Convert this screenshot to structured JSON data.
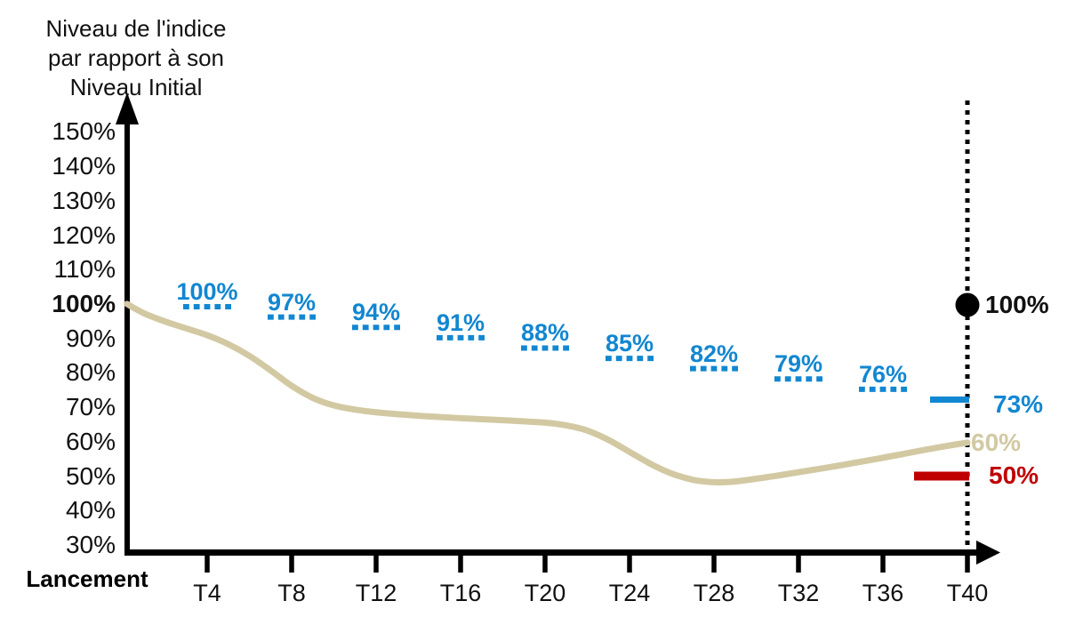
{
  "title": {
    "lines": [
      "Niveau de l'indice",
      "par rapport à son",
      "Niveau Initial"
    ]
  },
  "colors": {
    "blue": "#1287d1",
    "red": "#c00000",
    "tan": "#d2c9a3",
    "axis_black": "#000000",
    "text_black": "#111111"
  },
  "chart_data": {
    "type": "line",
    "title": "Niveau de l'indice par rapport à son Niveau Initial",
    "grid": false,
    "x_axis": {
      "origin_label": "Lancement",
      "tick_labels": [
        "T4",
        "T8",
        "T12",
        "T16",
        "T20",
        "T24",
        "T28",
        "T32",
        "T36",
        "T40"
      ],
      "tick_quarters": [
        4,
        8,
        12,
        16,
        20,
        24,
        28,
        32,
        36,
        40
      ]
    },
    "y_axis": {
      "tick_labels": [
        "150%",
        "140%",
        "130%",
        "120%",
        "110%",
        "100%",
        "90%",
        "80%",
        "70%",
        "60%",
        "50%",
        "40%",
        "30%"
      ],
      "tick_values": [
        150,
        140,
        130,
        120,
        110,
        100,
        90,
        80,
        70,
        60,
        50,
        40,
        30
      ],
      "bold_tick_label": "100%",
      "range": [
        30,
        150
      ]
    },
    "series": [
      {
        "name": "niveau-indice",
        "color": "#d2c9a3",
        "end_label": "60%",
        "end_value": 60,
        "points": [
          [
            0.2,
            100.3
          ],
          [
            1,
            97.6
          ],
          [
            2,
            95.2
          ],
          [
            3,
            93.2
          ],
          [
            4,
            91.2
          ],
          [
            5,
            88.6
          ],
          [
            6,
            85.2
          ],
          [
            7,
            81.0
          ],
          [
            8,
            76.5
          ],
          [
            9,
            73.0
          ],
          [
            10,
            70.8
          ],
          [
            11,
            69.6
          ],
          [
            12,
            68.8
          ],
          [
            14,
            67.8
          ],
          [
            16,
            67.1
          ],
          [
            18,
            66.5
          ],
          [
            20,
            65.8
          ],
          [
            21,
            65.0
          ],
          [
            22,
            63.5
          ],
          [
            23,
            60.8
          ],
          [
            24,
            57.3
          ],
          [
            25,
            53.8
          ],
          [
            26,
            51.0
          ],
          [
            27,
            49.2
          ],
          [
            28,
            48.5
          ],
          [
            29,
            48.7
          ],
          [
            30,
            49.5
          ],
          [
            31,
            50.4
          ],
          [
            32,
            51.4
          ],
          [
            34,
            53.4
          ],
          [
            36,
            55.6
          ],
          [
            38,
            57.9
          ],
          [
            39,
            59.0
          ],
          [
            40,
            60.0
          ]
        ]
      }
    ],
    "protection_markers": {
      "color": "#1287d1",
      "style": "dashed",
      "items": [
        {
          "label": "100%",
          "quarter": 4,
          "value": 100
        },
        {
          "label": "97%",
          "quarter": 8,
          "value": 97
        },
        {
          "label": "94%",
          "quarter": 12,
          "value": 94
        },
        {
          "label": "91%",
          "quarter": 16,
          "value": 91
        },
        {
          "label": "88%",
          "quarter": 20,
          "value": 88
        },
        {
          "label": "85%",
          "quarter": 24,
          "value": 85
        },
        {
          "label": "82%",
          "quarter": 28,
          "value": 82
        },
        {
          "label": "79%",
          "quarter": 32,
          "value": 79
        },
        {
          "label": "76%",
          "quarter": 36,
          "value": 76
        }
      ],
      "final": {
        "label": "73%",
        "quarter": 40,
        "value": 73,
        "style": "solid"
      }
    },
    "initial_level_marker": {
      "label": "100%",
      "quarter": 40,
      "value": 100,
      "color": "#000000",
      "style": "dot"
    },
    "floor_marker": {
      "label": "50%",
      "quarter": 40,
      "value": 50,
      "color": "#c00000",
      "style": "solid"
    },
    "vertical_guide": {
      "quarter": 40,
      "style": "dotted",
      "color": "#000000"
    }
  }
}
